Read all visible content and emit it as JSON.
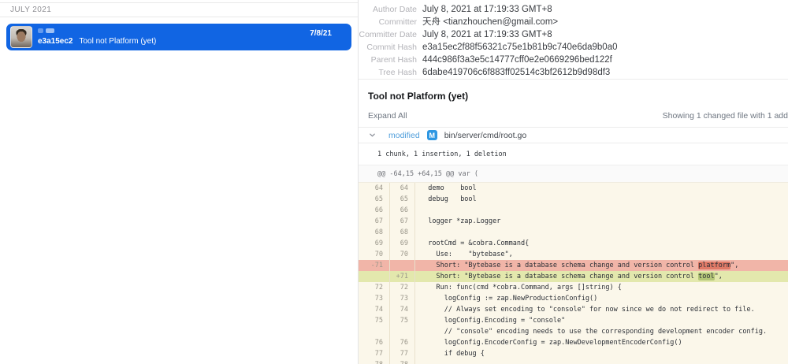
{
  "left_panel": {
    "section_header": "JULY 2021",
    "commit": {
      "hash_short": "e3a15ec2",
      "message": "Tool not Platform (yet)",
      "date": "7/8/21"
    }
  },
  "details": {
    "meta": [
      {
        "label": "Author Date",
        "value": "July 8, 2021 at 17:19:33 GMT+8"
      },
      {
        "label": "Committer",
        "value": "天舟 <tianzhouchen@gmail.com>"
      },
      {
        "label": "Committer Date",
        "value": "July 8, 2021 at 17:19:33 GMT+8"
      },
      {
        "label": "Commit Hash",
        "value": "e3a15ec2f88f56321c75e1b81b9c740e6da9b0a0"
      },
      {
        "label": "Parent Hash",
        "value": "444c986f3a3e5c14777cff0e2e0669296bed122f"
      },
      {
        "label": "Tree Hash",
        "value": "6dabe419706c6f883ff02514c3bf2612b9d98df3"
      }
    ],
    "title": "Tool not Platform (yet)",
    "expand_all_label": "Expand All",
    "changes_summary": "Showing 1 changed file with 1 add",
    "file": {
      "status": "modified",
      "badge": "M",
      "path": "bin/server/cmd/root.go",
      "chunk_summary": "1 chunk, 1 insertion, 1 deletion",
      "hunk_header": "@@ -64,15 +64,15 @@ var ("
    }
  },
  "diff": {
    "lines": [
      {
        "old": "64",
        "new": "64",
        "type": "context",
        "text": "\tdemo\t\tbool"
      },
      {
        "old": "65",
        "new": "65",
        "type": "context",
        "text": "\tdebug\t\tbool"
      },
      {
        "old": "66",
        "new": "66",
        "type": "context",
        "text": ""
      },
      {
        "old": "67",
        "new": "67",
        "type": "context",
        "text": "\tlogger *zap.Logger"
      },
      {
        "old": "68",
        "new": "68",
        "type": "context",
        "text": ""
      },
      {
        "old": "69",
        "new": "69",
        "type": "context",
        "text": "\trootCmd = &cobra.Command{"
      },
      {
        "old": "70",
        "new": "70",
        "type": "context",
        "text": "\t\tUse:\t\t\"bytebase\","
      },
      {
        "old": "-71",
        "new": "",
        "type": "del",
        "segments": [
          {
            "text": "\t\tShort: \"Bytebase is a database schema change and version control "
          },
          {
            "text": "platform",
            "highlight": true
          },
          {
            "text": "\","
          }
        ]
      },
      {
        "old": "",
        "new": "+71",
        "type": "add",
        "segments": [
          {
            "text": "\t\tShort: \"Bytebase is a database schema change and version control "
          },
          {
            "text": "tool",
            "highlight": true
          },
          {
            "text": "\","
          }
        ]
      },
      {
        "old": "72",
        "new": "72",
        "type": "context",
        "text": "\t\tRun: func(cmd *cobra.Command, args []string) {"
      },
      {
        "old": "73",
        "new": "73",
        "type": "context",
        "text": "\t\t\tlogConfig := zap.NewProductionConfig()"
      },
      {
        "old": "74",
        "new": "74",
        "type": "context",
        "text": "\t\t\t// Always set encoding to \"console\" for now since we do not redirect to file."
      },
      {
        "old": "75",
        "new": "75",
        "type": "context",
        "text": "\t\t\tlogConfig.Encoding = \"console\""
      },
      {
        "old": "",
        "new": "",
        "type": "context",
        "text": "\t\t\t// \"console\" encoding needs to use the corresponding development encoder config."
      },
      {
        "old": "76",
        "new": "76",
        "type": "context",
        "text": "\t\t\tlogConfig.EncoderConfig = zap.NewDevelopmentEncoderConfig()"
      },
      {
        "old": "77",
        "new": "77",
        "type": "context",
        "text": "\t\t\tif debug {"
      },
      {
        "old": "78",
        "new": "78",
        "type": "context",
        "text": ""
      }
    ]
  },
  "colors": {
    "selection_blue": "#1165e3",
    "modified_blue": "#4f9edb",
    "badge_blue": "#2e97e2",
    "deletion_row": "#f1b5a8",
    "deletion_word": "#e07a67",
    "addition_row": "#e3e8ad",
    "addition_word": "#b4c678",
    "code_background": "#fbf7ea"
  }
}
